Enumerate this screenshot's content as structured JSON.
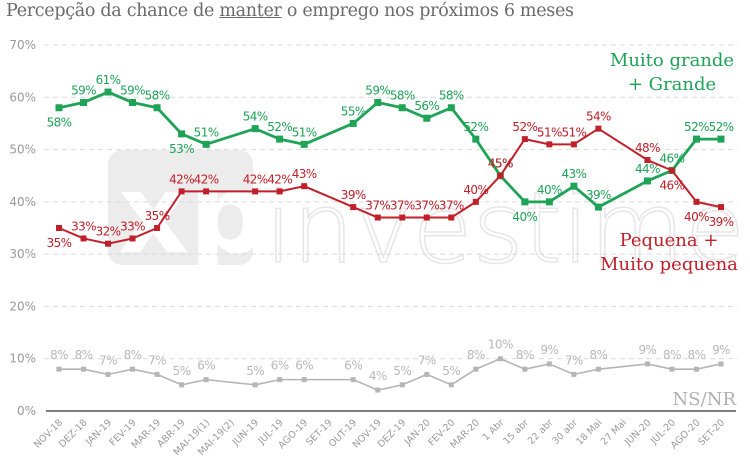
{
  "title_parts": [
    "Percepção da chance de ",
    "manter",
    " o emprego nos próximos 6 meses"
  ],
  "watermark": {
    "brand": "xp",
    "text": "investimentos"
  },
  "colors": {
    "green": "#1ea357",
    "red": "#c0202a",
    "gray": "#b5b5b5",
    "grid": "#d9d9d9",
    "axis": "#555555"
  },
  "chart_data": {
    "type": "line",
    "title": "Percepção da chance de manter o emprego nos próximos 6 meses",
    "xlabel": "",
    "ylabel": "",
    "ylim": [
      0,
      70
    ],
    "yticks": [
      "0%",
      "10%",
      "20%",
      "30%",
      "40%",
      "50%",
      "60%",
      "70%"
    ],
    "grid": true,
    "categories": [
      "NOV-18",
      "DEZ-18",
      "JAN-19",
      "FEV-19",
      "MAR-19",
      "ABR-19",
      "MAI-19(1)",
      "MAI-19(2)",
      "JUN-19",
      "JUL-19",
      "AGO-19",
      "SET-19",
      "OUT-19",
      "NOV-19",
      "DEZ-19",
      "JAN-20",
      "FEV-20",
      "MAR-20",
      "1 Abr",
      "15 abr",
      "22 abr",
      "30 abr",
      "18 Mai",
      "27 Mai",
      "JUN-20",
      "JUL-20",
      "AGO-20",
      "SET-20"
    ],
    "series": [
      {
        "name": "Muito grande + Grande",
        "legend_lines": [
          "Muito grande",
          "+ Grande"
        ],
        "color": "#1ea357",
        "values": [
          58,
          59,
          61,
          59,
          58,
          53,
          51,
          null,
          54,
          52,
          51,
          null,
          55,
          59,
          58,
          56,
          58,
          52,
          45,
          40,
          40,
          43,
          39,
          null,
          44,
          46,
          52,
          52
        ]
      },
      {
        "name": "Pequena + Muito pequena",
        "legend_lines": [
          "Pequena +",
          "Muito pequena"
        ],
        "color": "#c0202a",
        "values": [
          35,
          33,
          32,
          33,
          35,
          42,
          42,
          null,
          42,
          42,
          43,
          null,
          39,
          37,
          37,
          37,
          37,
          40,
          45,
          52,
          51,
          51,
          54,
          null,
          48,
          46,
          40,
          39
        ]
      },
      {
        "name": "NS/NR",
        "legend_lines": [
          "NS/NR"
        ],
        "color": "#b5b5b5",
        "values": [
          8,
          8,
          7,
          8,
          7,
          5,
          6,
          null,
          5,
          6,
          6,
          null,
          6,
          4,
          5,
          7,
          5,
          8,
          10,
          8,
          9,
          7,
          8,
          null,
          9,
          8,
          8,
          9
        ]
      }
    ]
  }
}
